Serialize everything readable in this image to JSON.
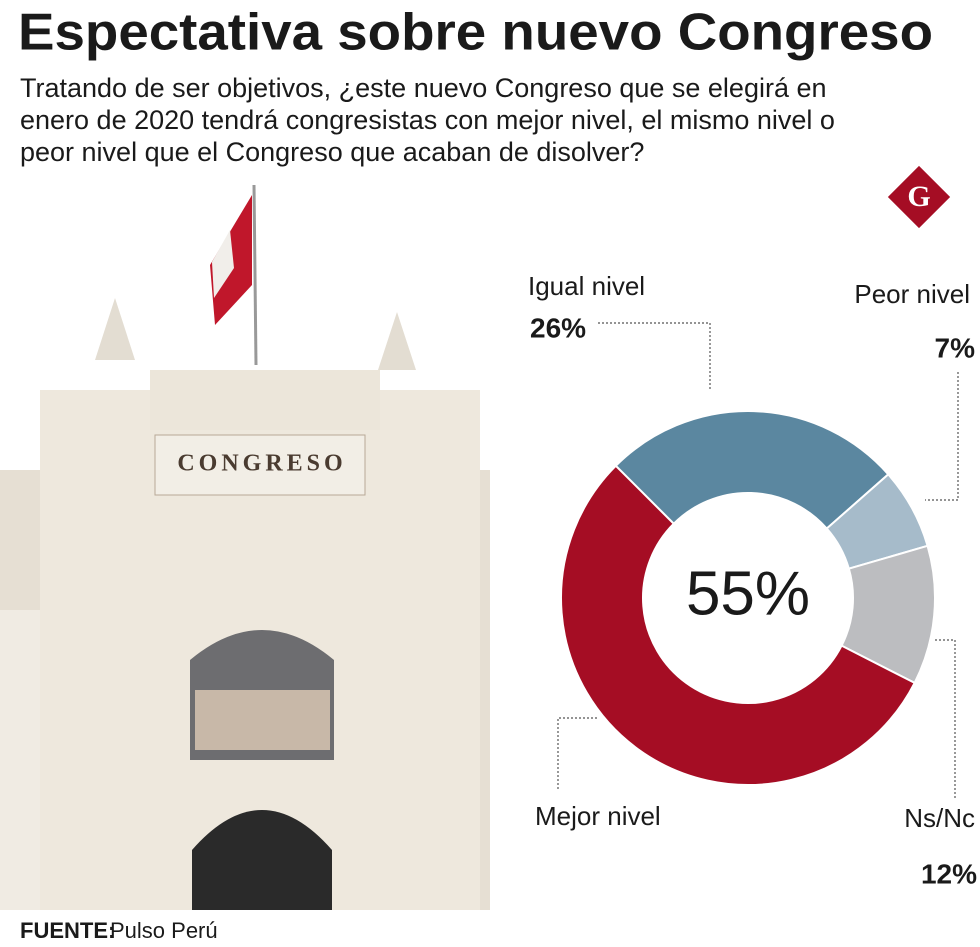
{
  "chart_data": {
    "type": "donut",
    "title": "Espectativa sobre nuevo Congreso",
    "subtitle": [
      "Tratando  de ser objetivos, ¿este nuevo Congreso que se elegirá en",
      "enero de 2020 tendrá congresistas con mejor nivel, el mismo nivel o",
      "peor nivel que el Congreso que acaban de disolver?"
    ],
    "logo": "G",
    "photo_text": "CONGRESO",
    "categories": [
      "Igual nivel",
      "Peor nivel",
      "Ns/Nc",
      "Mejor nivel"
    ],
    "values": [
      26,
      7,
      12,
      55
    ],
    "value_labels": [
      "26%",
      "7%",
      "12%",
      "55%"
    ],
    "colors": [
      "#5b87a0",
      "#a6bbca",
      "#bcbdc0",
      "#a50d24"
    ],
    "source_label": "FUENTE:",
    "source": "Pulso Perú"
  }
}
